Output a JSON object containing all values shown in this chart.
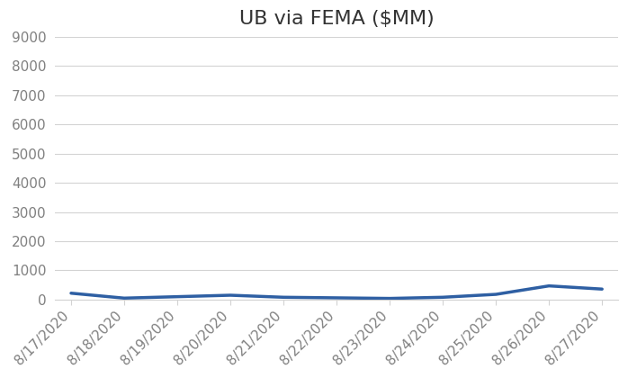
{
  "title": "UB via FEMA ($MM)",
  "dates": [
    "8/17/2020",
    "8/18/2020",
    "8/19/2020",
    "8/20/2020",
    "8/21/2020",
    "8/22/2020",
    "8/23/2020",
    "8/24/2020",
    "8/25/2020",
    "8/26/2020",
    "8/27/2020"
  ],
  "values": [
    220,
    50,
    100,
    150,
    80,
    60,
    40,
    80,
    180,
    470,
    360
  ],
  "line_color": "#2E5FA3",
  "line_width": 2.5,
  "ylim": [
    0,
    9000
  ],
  "yticks": [
    0,
    1000,
    2000,
    3000,
    4000,
    5000,
    6000,
    7000,
    8000,
    9000
  ],
  "background_color": "#ffffff",
  "grid_color": "#d3d3d3",
  "title_fontsize": 16,
  "tick_fontsize": 11,
  "tick_color": "#808080"
}
